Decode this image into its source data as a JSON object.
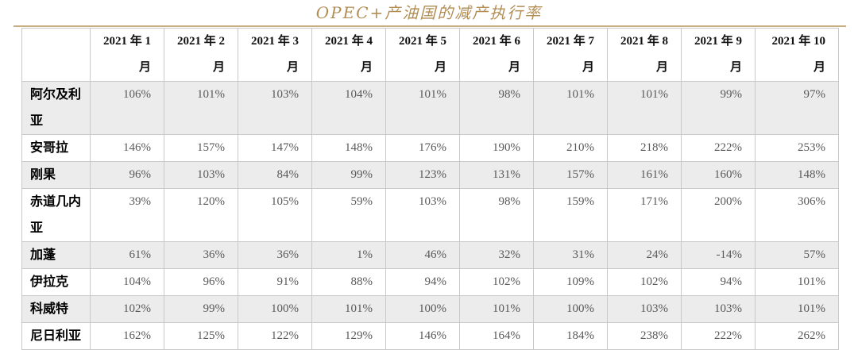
{
  "title": "OPEC+产油国的减产执行率",
  "colors": {
    "title_gold": "#b28e55",
    "rule_gold": "#c8ad7f",
    "alt_row_bg": "#ececec",
    "border": "#c9c9c9",
    "value_text": "#595959",
    "header_text": "#111111"
  },
  "table": {
    "corner_label": "",
    "columns": [
      {
        "line1": "2021 年 1",
        "line2": "月"
      },
      {
        "line1": "2021 年 2",
        "line2": "月"
      },
      {
        "line1": "2021 年 3",
        "line2": "月"
      },
      {
        "line1": "2021 年 4",
        "line2": "月"
      },
      {
        "line1": "2021 年 5",
        "line2": "月"
      },
      {
        "line1": "2021 年 6",
        "line2": "月"
      },
      {
        "line1": "2021 年 7",
        "line2": "月"
      },
      {
        "line1": "2021 年 8",
        "line2": "月"
      },
      {
        "line1": "2021 年 9",
        "line2": "月"
      },
      {
        "line1": "2021 年 10",
        "line2": "月"
      }
    ],
    "rows": [
      {
        "country": "阿尔及利亚",
        "values": [
          "106%",
          "101%",
          "103%",
          "104%",
          "101%",
          "98%",
          "101%",
          "101%",
          "99%",
          "97%"
        ]
      },
      {
        "country": "安哥拉",
        "values": [
          "146%",
          "157%",
          "147%",
          "148%",
          "176%",
          "190%",
          "210%",
          "218%",
          "222%",
          "253%"
        ]
      },
      {
        "country": "刚果",
        "values": [
          "96%",
          "103%",
          "84%",
          "99%",
          "123%",
          "131%",
          "157%",
          "161%",
          "160%",
          "148%"
        ]
      },
      {
        "country": "赤道几内亚",
        "values": [
          "39%",
          "120%",
          "105%",
          "59%",
          "103%",
          "98%",
          "159%",
          "171%",
          "200%",
          "306%"
        ]
      },
      {
        "country": "加蓬",
        "values": [
          "61%",
          "36%",
          "36%",
          "1%",
          "46%",
          "32%",
          "31%",
          "24%",
          "-14%",
          "57%"
        ]
      },
      {
        "country": "伊拉克",
        "values": [
          "104%",
          "96%",
          "91%",
          "88%",
          "94%",
          "102%",
          "109%",
          "102%",
          "94%",
          "101%"
        ]
      },
      {
        "country": "科威特",
        "values": [
          "102%",
          "99%",
          "100%",
          "101%",
          "100%",
          "101%",
          "100%",
          "103%",
          "103%",
          "101%"
        ]
      },
      {
        "country": "尼日利亚",
        "values": [
          "162%",
          "125%",
          "122%",
          "129%",
          "146%",
          "164%",
          "184%",
          "238%",
          "222%",
          "262%"
        ]
      }
    ]
  },
  "chart_data": {
    "type": "table",
    "title": "OPEC+产油国的减产执行率",
    "unit": "%",
    "categories": [
      "2021年1月",
      "2021年2月",
      "2021年3月",
      "2021年4月",
      "2021年5月",
      "2021年6月",
      "2021年7月",
      "2021年8月",
      "2021年9月",
      "2021年10月"
    ],
    "series": [
      {
        "name": "阿尔及利亚",
        "values": [
          106,
          101,
          103,
          104,
          101,
          98,
          101,
          101,
          99,
          97
        ]
      },
      {
        "name": "安哥拉",
        "values": [
          146,
          157,
          147,
          148,
          176,
          190,
          210,
          218,
          222,
          253
        ]
      },
      {
        "name": "刚果",
        "values": [
          96,
          103,
          84,
          99,
          123,
          131,
          157,
          161,
          160,
          148
        ]
      },
      {
        "name": "赤道几内亚",
        "values": [
          39,
          120,
          105,
          59,
          103,
          98,
          159,
          171,
          200,
          306
        ]
      },
      {
        "name": "加蓬",
        "values": [
          61,
          36,
          36,
          1,
          46,
          32,
          31,
          24,
          -14,
          57
        ]
      },
      {
        "name": "伊拉克",
        "values": [
          104,
          96,
          91,
          88,
          94,
          102,
          109,
          102,
          94,
          101
        ]
      },
      {
        "name": "科威特",
        "values": [
          102,
          99,
          100,
          101,
          100,
          101,
          100,
          103,
          103,
          101
        ]
      },
      {
        "name": "尼日利亚",
        "values": [
          162,
          125,
          122,
          129,
          146,
          164,
          184,
          238,
          222,
          262
        ]
      }
    ]
  }
}
